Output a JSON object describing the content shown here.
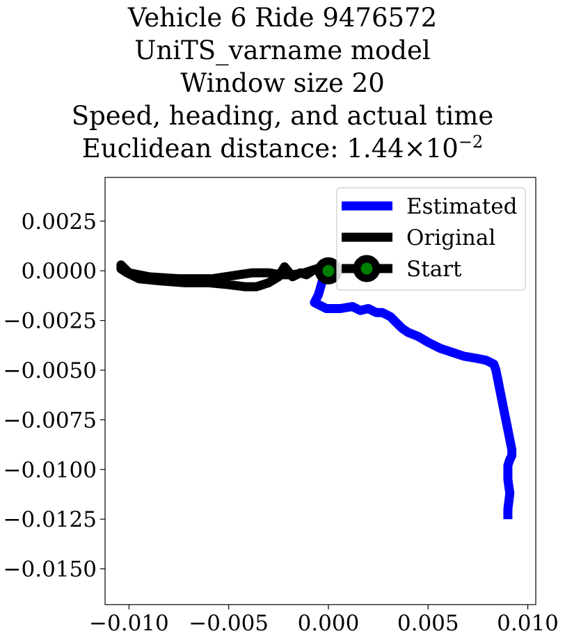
{
  "chart_data": {
    "type": "line",
    "title_lines": [
      "Vehicle 6 Ride 9476572",
      "UniTS_varname model",
      "Window size 20",
      "Speed, heading, and actual time"
    ],
    "title_metric_label": "Euclidean distance: ",
    "title_metric_mantissa": "1.44",
    "title_metric_times": "×",
    "title_metric_base": "10",
    "title_metric_exponent": "−2",
    "xlabel": "",
    "ylabel": "",
    "xlim": [
      -0.0112,
      0.0104
    ],
    "ylim": [
      -0.0168,
      0.0047
    ],
    "xticks": [
      -0.01,
      -0.005,
      0.0,
      0.005,
      0.01
    ],
    "xtick_labels": [
      "−0.010",
      "−0.005",
      "0.000",
      "0.005",
      "0.010"
    ],
    "yticks": [
      0.0025,
      0.0,
      -0.0025,
      -0.005,
      -0.0075,
      -0.01,
      -0.0125,
      -0.015
    ],
    "ytick_labels": [
      "0.0025",
      "0.0000",
      "−0.0025",
      "−0.0050",
      "−0.0075",
      "−0.0100",
      "−0.0125",
      "−0.0150"
    ],
    "grid": false,
    "legend_position": "upper-right",
    "series": [
      {
        "name": "Estimated",
        "color": "#0000ff",
        "points": [
          [
            0.0,
            0.0
          ],
          [
            -0.0003,
            -0.0005
          ],
          [
            -0.0005,
            -0.0012
          ],
          [
            -0.0007,
            -0.0016
          ],
          [
            -0.0001,
            -0.0019
          ],
          [
            0.0006,
            -0.0019
          ],
          [
            0.0012,
            -0.0018
          ],
          [
            0.0016,
            -0.002
          ],
          [
            0.002,
            -0.0019
          ],
          [
            0.0024,
            -0.0021
          ],
          [
            0.0027,
            -0.0021
          ],
          [
            0.0031,
            -0.0023
          ],
          [
            0.0034,
            -0.0026
          ],
          [
            0.0037,
            -0.0029
          ],
          [
            0.004,
            -0.0031
          ],
          [
            0.0045,
            -0.0033
          ],
          [
            0.005,
            -0.0036
          ],
          [
            0.0056,
            -0.0039
          ],
          [
            0.0062,
            -0.0041
          ],
          [
            0.0068,
            -0.0043
          ],
          [
            0.0074,
            -0.0044
          ],
          [
            0.0079,
            -0.0045
          ],
          [
            0.0083,
            -0.0047
          ],
          [
            0.0084,
            -0.005
          ],
          [
            0.0085,
            -0.0055
          ],
          [
            0.0086,
            -0.006
          ],
          [
            0.0087,
            -0.0065
          ],
          [
            0.0088,
            -0.007
          ],
          [
            0.009,
            -0.008
          ],
          [
            0.0092,
            -0.009
          ],
          [
            0.0092,
            -0.0093
          ],
          [
            0.0091,
            -0.0095
          ],
          [
            0.009,
            -0.0098
          ],
          [
            0.009,
            -0.0105
          ],
          [
            0.0091,
            -0.0112
          ],
          [
            0.009,
            -0.012
          ],
          [
            0.009,
            -0.0125
          ]
        ]
      },
      {
        "name": "Original",
        "color": "#000000",
        "points": [
          [
            0.0,
            0.0
          ],
          [
            -0.0004,
            0.0001
          ],
          [
            -0.0008,
            0.0
          ],
          [
            -0.0011,
            -0.0002
          ],
          [
            -0.0014,
            -0.0001
          ],
          [
            -0.0018,
            -0.0003
          ],
          [
            -0.0022,
            0.0002
          ],
          [
            -0.0025,
            -0.0003
          ],
          [
            -0.003,
            -0.0006
          ],
          [
            -0.0036,
            -0.0008
          ],
          [
            -0.0042,
            -0.0008
          ],
          [
            -0.005,
            -0.0007
          ],
          [
            -0.006,
            -0.0006
          ],
          [
            -0.0072,
            -0.0006
          ],
          [
            -0.0085,
            -0.0005
          ],
          [
            -0.0095,
            -0.0004
          ],
          [
            -0.0101,
            -0.0001
          ],
          [
            -0.0104,
            0.0001
          ],
          [
            -0.0104,
            0.0003
          ],
          [
            -0.01,
            -0.0001
          ],
          [
            -0.009,
            -0.0003
          ],
          [
            -0.0075,
            -0.0004
          ],
          [
            -0.0058,
            -0.0004
          ],
          [
            -0.0045,
            -0.0002
          ],
          [
            -0.0038,
            -0.0001
          ],
          [
            -0.003,
            -0.0001
          ],
          [
            -0.0024,
            -0.0002
          ],
          [
            -0.0018,
            -0.0002
          ],
          [
            -0.0012,
            -0.0001
          ],
          [
            -0.0006,
            0.0001
          ],
          [
            -0.0002,
            0.0
          ],
          [
            0.0,
            0.0
          ]
        ]
      }
    ],
    "start_marker": {
      "name": "Start",
      "x": 0.0,
      "y": 0.0,
      "edge_color": "#000000",
      "face_color": "#008000"
    }
  }
}
